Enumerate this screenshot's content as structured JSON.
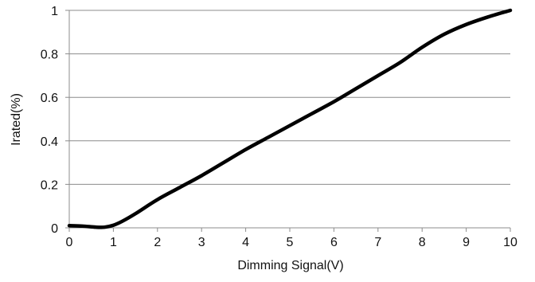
{
  "chart_data": {
    "type": "line",
    "title": "",
    "xlabel": "Dimming Signal(V)",
    "ylabel": "Irated(%)",
    "xlim": [
      0,
      10
    ],
    "ylim": [
      0,
      1
    ],
    "x_ticks": [
      "0",
      "1",
      "2",
      "3",
      "4",
      "5",
      "6",
      "7",
      "8",
      "9",
      "10"
    ],
    "y_ticks": [
      "0",
      "0.2",
      "0.4",
      "0.6",
      "0.8",
      "1"
    ],
    "grid": "horizontal",
    "legend": "none",
    "line_color": "#000000",
    "grid_color": "#8c8c8c",
    "series": [
      {
        "x": [
          0,
          0.3,
          0.6,
          0.8,
          1.0,
          1.2,
          1.5,
          2.0,
          2.5,
          3.0,
          3.5,
          4.0,
          4.5,
          5.0,
          5.5,
          6.0,
          6.5,
          7.0,
          7.5,
          8.0,
          8.5,
          9.0,
          9.5,
          10.0
        ],
        "y": [
          0.01,
          0.008,
          0.003,
          0.003,
          0.012,
          0.03,
          0.065,
          0.13,
          0.185,
          0.24,
          0.3,
          0.36,
          0.415,
          0.47,
          0.525,
          0.58,
          0.64,
          0.7,
          0.76,
          0.83,
          0.89,
          0.935,
          0.97,
          1.0
        ]
      }
    ]
  }
}
